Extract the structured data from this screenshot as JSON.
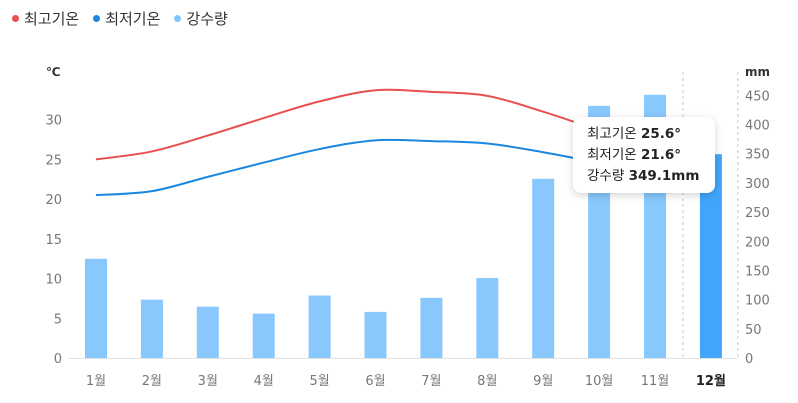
{
  "legend": [
    {
      "label": "최고기온",
      "color": "#e8504f"
    },
    {
      "label": "최저기온",
      "color": "#1a87e0"
    },
    {
      "label": "강수량",
      "color": "#7fc4fc"
    }
  ],
  "colors": {
    "bar": "#88c8fd",
    "bar_selected": "#3fa6fb",
    "max_line": "#e8504f",
    "min_line": "#1a87e0"
  },
  "chart_data": {
    "type": "bar",
    "categories": [
      "1월",
      "2월",
      "3월",
      "4월",
      "5월",
      "6월",
      "7월",
      "8월",
      "9월",
      "10월",
      "11월",
      "12월"
    ],
    "series": [
      {
        "name": "최고기온",
        "type": "line",
        "axis": "left",
        "values": [
          25.0,
          26.0,
          28.0,
          30.2,
          32.3,
          33.7,
          33.5,
          33.0,
          31.0,
          28.7,
          26.8,
          25.6
        ]
      },
      {
        "name": "최저기온",
        "type": "line",
        "axis": "left",
        "values": [
          20.5,
          21.0,
          22.8,
          24.6,
          26.3,
          27.4,
          27.3,
          27.0,
          25.9,
          24.5,
          22.6,
          21.6
        ]
      },
      {
        "name": "강수량",
        "type": "bar",
        "axis": "right",
        "values": [
          170,
          100,
          88,
          76,
          107,
          79,
          103,
          137,
          307,
          432,
          451,
          349.1
        ]
      }
    ],
    "y_left": {
      "unit": "℃",
      "ticks": [
        "0",
        "5",
        "10",
        "15",
        "20",
        "25",
        "30"
      ],
      "ylim": [
        0,
        36
      ]
    },
    "y_right": {
      "unit": "mm",
      "ticks": [
        "0",
        "50",
        "100",
        "150",
        "200",
        "250",
        "300",
        "350",
        "400",
        "450"
      ],
      "ylim": [
        0,
        490
      ]
    },
    "selected_index": 11,
    "grid": false,
    "legend_position": "top-left"
  },
  "tooltip": {
    "rows": [
      {
        "label": "최고기온",
        "value": "25.6°"
      },
      {
        "label": "최저기온",
        "value": "21.6°"
      },
      {
        "label": "강수량",
        "value": "349.1mm"
      }
    ]
  }
}
